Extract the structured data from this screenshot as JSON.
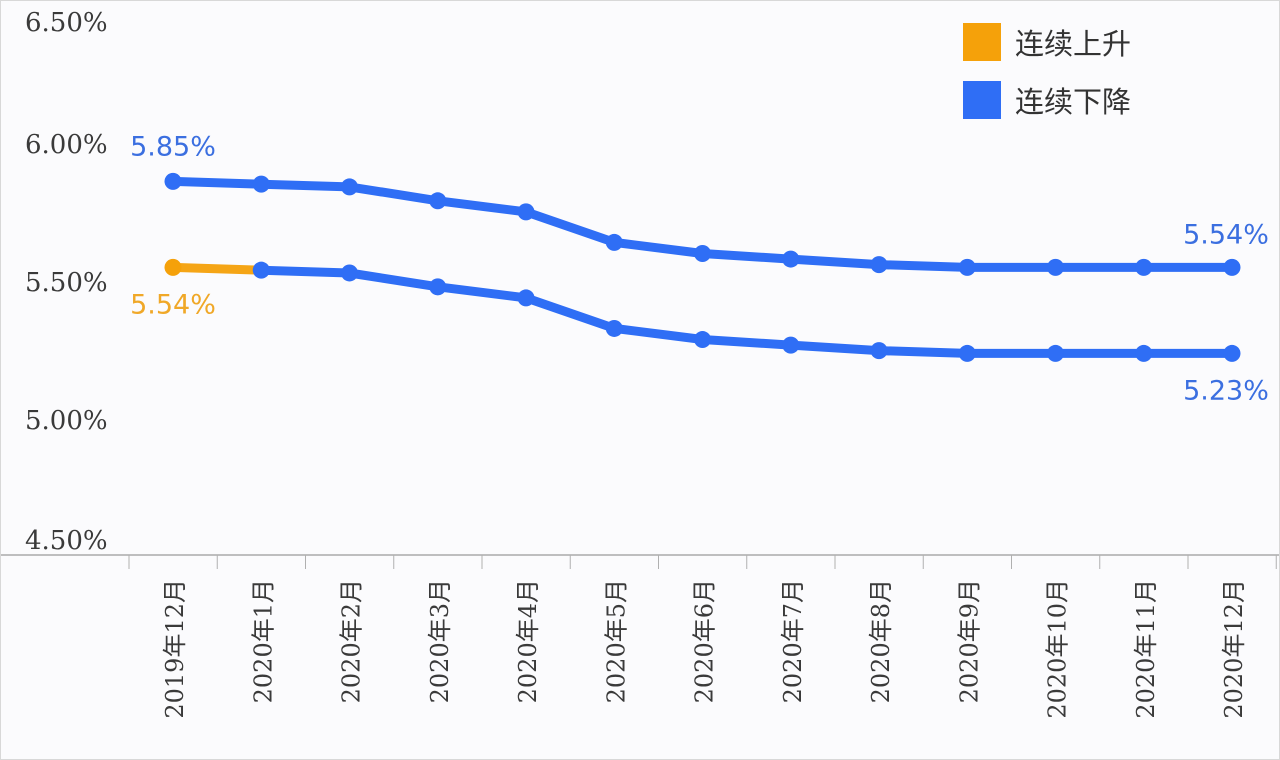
{
  "chart_data": {
    "type": "line",
    "title": "",
    "xlabel": "",
    "ylabel": "",
    "categories": [
      "2019年12月",
      "2020年1月",
      "2020年2月",
      "2020年3月",
      "2020年4月",
      "2020年5月",
      "2020年6月",
      "2020年7月",
      "2020年8月",
      "2020年9月",
      "2020年10月",
      "2020年11月",
      "2020年12月"
    ],
    "yticks": [
      "4.50%",
      "5.00%",
      "5.50%",
      "6.00%",
      "6.50%"
    ],
    "ylim": [
      4.5,
      6.5
    ],
    "grid": false,
    "legend_position": "top-right",
    "legend": [
      {
        "label": "连续上升",
        "color": "#f5a10a"
      },
      {
        "label": "连续下降",
        "color": "#2f6ef5"
      }
    ],
    "series": [
      {
        "values": [
          5.85,
          5.84,
          5.83,
          5.78,
          5.74,
          5.63,
          5.59,
          5.57,
          5.55,
          5.54,
          5.54,
          5.54,
          5.54
        ],
        "color": "#2f6ef5"
      },
      {
        "values": [
          5.54,
          5.53,
          5.52,
          5.47,
          5.43,
          5.32,
          5.28,
          5.26,
          5.24,
          5.23,
          5.23,
          5.23,
          5.23
        ],
        "color": "#2f6ef5",
        "first_segment_color": "#f5a10a"
      }
    ],
    "data_labels": [
      {
        "text": "5.85%",
        "series": 0,
        "index": 0,
        "color": "#3b6fe0"
      },
      {
        "text": "5.54%",
        "series": 0,
        "index": 12,
        "color": "#3b6fe0"
      },
      {
        "text": "5.54%",
        "series": 1,
        "index": 0,
        "color": "#f0a828"
      },
      {
        "text": "5.23%",
        "series": 1,
        "index": 12,
        "color": "#3b6fe0"
      }
    ]
  }
}
